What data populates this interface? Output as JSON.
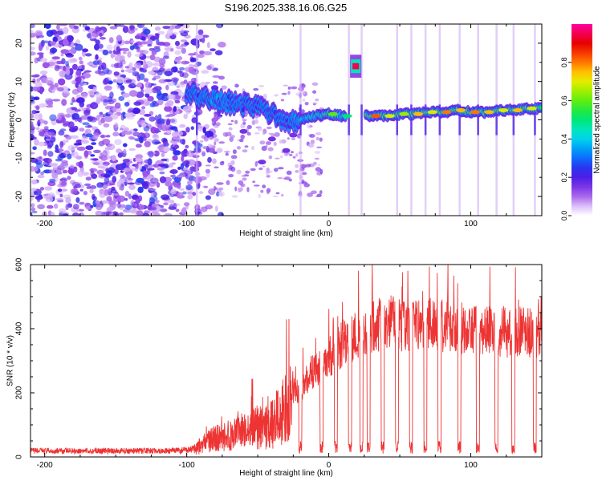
{
  "figure_title": "S196.2025.338.16.06.G25",
  "chart_data": [
    {
      "type": "heatmap",
      "title": "S196.2025.338.16.06.G25",
      "xlabel": "Height of straight line (km)",
      "ylabel": "Frequency (Hz)",
      "xlim": [
        -210,
        150
      ],
      "ylim": [
        -25,
        25
      ],
      "xticks": [
        -200,
        -100,
        0,
        100
      ],
      "xtick_labels": [
        "-200",
        "-100",
        "0",
        "100"
      ],
      "yticks": [
        -20,
        -10,
        0,
        10,
        20
      ],
      "ytick_labels": [
        "-20",
        "-10",
        "0",
        "10",
        "20"
      ],
      "colorbar": {
        "label": "Normalized spectral amplitude",
        "range": [
          0,
          1
        ],
        "ticks": [
          0.0,
          0.2,
          0.4,
          0.6,
          0.8
        ],
        "tick_labels": [
          "0.0",
          "0.2",
          "0.4",
          "0.6",
          "0.8"
        ],
        "colormap": "rainbow (white-violet-blue-cyan-green-yellow-red-magenta)"
      },
      "noise_region_x": [
        -210,
        -90
      ],
      "ridge": [
        {
          "x": -100,
          "freq": 7,
          "amp": 0.25
        },
        {
          "x": -90,
          "freq": 6,
          "amp": 0.3
        },
        {
          "x": -80,
          "freq": 5,
          "amp": 0.35
        },
        {
          "x": -70,
          "freq": 4.5,
          "amp": 0.3
        },
        {
          "x": -60,
          "freq": 4,
          "amp": 0.3
        },
        {
          "x": -50,
          "freq": 3,
          "amp": 0.25
        },
        {
          "x": -40,
          "freq": 1.5,
          "amp": 0.3
        },
        {
          "x": -30,
          "freq": -1,
          "amp": 0.25
        },
        {
          "x": -20,
          "freq": 0,
          "amp": 0.4
        },
        {
          "x": -10,
          "freq": 1,
          "amp": 0.45
        },
        {
          "x": 0,
          "freq": 1.5,
          "amp": 0.6
        },
        {
          "x": 10,
          "freq": 1,
          "amp": 0.5
        },
        {
          "x": 28,
          "freq": 1,
          "amp": 0.85
        },
        {
          "x": 40,
          "freq": 1,
          "amp": 0.7
        },
        {
          "x": 50,
          "freq": 1.5,
          "amp": 0.65
        },
        {
          "x": 60,
          "freq": 1.5,
          "amp": 0.75
        },
        {
          "x": 70,
          "freq": 2,
          "amp": 0.7
        },
        {
          "x": 80,
          "freq": 2,
          "amp": 0.8
        },
        {
          "x": 90,
          "freq": 2.5,
          "amp": 0.75
        },
        {
          "x": 100,
          "freq": 2,
          "amp": 0.8
        },
        {
          "x": 110,
          "freq": 2,
          "amp": 0.75
        },
        {
          "x": 120,
          "freq": 2.5,
          "amp": 0.7
        },
        {
          "x": 130,
          "freq": 2.5,
          "amp": 0.75
        },
        {
          "x": 140,
          "freq": 3,
          "amp": 0.7
        },
        {
          "x": 150,
          "freq": 3,
          "amp": 0.65
        }
      ],
      "isolated_feature": {
        "x": [
          15,
          23
        ],
        "freq": 14,
        "amp": 0.95
      },
      "vertical_streaks_x": [
        -93,
        -20,
        14,
        23,
        48,
        58,
        68,
        78,
        92,
        105,
        118,
        130,
        145
      ]
    },
    {
      "type": "line",
      "xlabel": "Height of straight line (km)",
      "ylabel": "SNR (10 * v/v)",
      "xlim": [
        -210,
        150
      ],
      "ylim": [
        0,
        600
      ],
      "xticks": [
        -200,
        -100,
        0,
        100
      ],
      "xtick_labels": [
        "-200",
        "-100",
        "0",
        "100"
      ],
      "yticks": [
        0,
        200,
        400,
        600
      ],
      "ytick_labels": [
        "0",
        "200",
        "400",
        "600"
      ],
      "series": [
        {
          "name": "SNR",
          "color": "#ee3333",
          "envelope": {
            "x": [
              -210,
              -150,
              -110,
              -95,
              -85,
              -70,
              -55,
              -40,
              -30,
              -20,
              -10,
              0,
              10,
              20,
              30,
              40,
              60,
              80,
              100,
              120,
              150
            ],
            "y": [
              20,
              20,
              20,
              25,
              60,
              80,
              100,
              120,
              180,
              240,
              300,
              340,
              390,
              420,
              440,
              460,
              450,
              450,
              440,
              430,
              430
            ]
          },
          "dropouts_x": [
            -20,
            -5,
            5,
            15,
            23,
            28,
            38,
            48,
            58,
            68,
            78,
            92,
            105,
            118,
            130,
            145
          ]
        }
      ]
    }
  ],
  "colors": {
    "snr_line": "#ee3333",
    "axes": "#000000"
  }
}
